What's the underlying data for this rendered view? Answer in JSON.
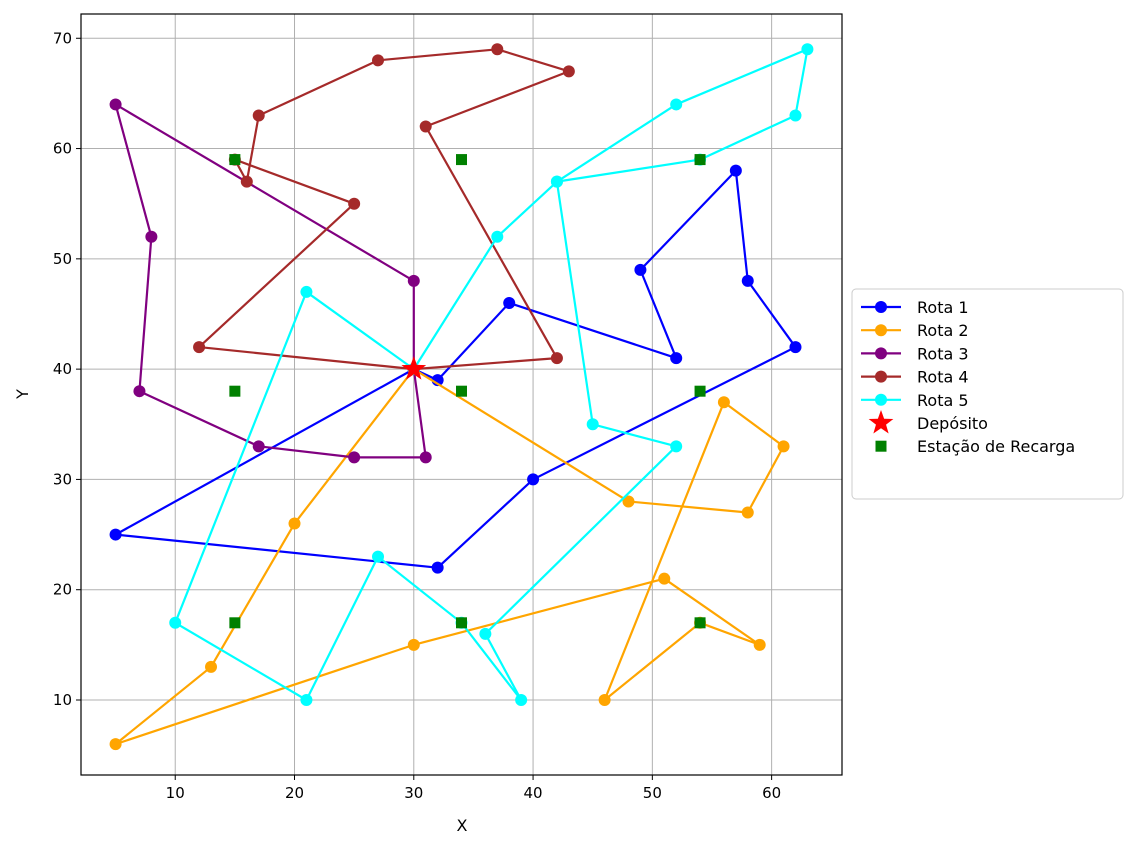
{
  "chart_data": {
    "type": "scatter",
    "title": "",
    "xlabel": "X",
    "ylabel": "Y",
    "xlim": [
      2.1,
      65.9
    ],
    "ylim": [
      3.2,
      72.2
    ],
    "xticks": [
      10,
      20,
      30,
      40,
      50,
      60
    ],
    "yticks": [
      10,
      20,
      30,
      40,
      50,
      60,
      70
    ],
    "grid": true,
    "legend_position": "center-right-outside",
    "series": [
      {
        "name": "Rota 1",
        "color": "#0000ff",
        "marker": "circle",
        "points": [
          [
            30,
            40
          ],
          [
            5,
            25
          ],
          [
            32,
            22
          ],
          [
            40,
            30
          ],
          [
            62,
            42
          ],
          [
            58,
            48
          ],
          [
            57,
            58
          ],
          [
            49,
            49
          ],
          [
            52,
            41
          ],
          [
            38,
            46
          ],
          [
            32,
            39
          ],
          [
            30,
            40
          ]
        ]
      },
      {
        "name": "Rota 2",
        "color": "#ffa500",
        "marker": "circle",
        "points": [
          [
            30,
            40
          ],
          [
            20,
            26
          ],
          [
            13,
            13
          ],
          [
            5,
            6
          ],
          [
            30,
            15
          ],
          [
            51,
            21
          ],
          [
            59,
            15
          ],
          [
            54,
            17
          ],
          [
            46,
            10
          ],
          [
            56,
            37
          ],
          [
            61,
            33
          ],
          [
            58,
            27
          ],
          [
            48,
            28
          ],
          [
            30,
            40
          ]
        ]
      },
      {
        "name": "Rota 3",
        "color": "#800080",
        "marker": "circle",
        "points": [
          [
            30,
            40
          ],
          [
            31,
            32
          ],
          [
            25,
            32
          ],
          [
            17,
            33
          ],
          [
            7,
            38
          ],
          [
            8,
            52
          ],
          [
            5,
            64
          ],
          [
            30,
            48
          ],
          [
            30,
            40
          ]
        ]
      },
      {
        "name": "Rota 4",
        "color": "#a52a2a",
        "marker": "circle",
        "points": [
          [
            30,
            40
          ],
          [
            12,
            42
          ],
          [
            25,
            55
          ],
          [
            15,
            59
          ],
          [
            16,
            57
          ],
          [
            17,
            63
          ],
          [
            27,
            68
          ],
          [
            37,
            69
          ],
          [
            43,
            67
          ],
          [
            31,
            62
          ],
          [
            42,
            41
          ],
          [
            30,
            40
          ]
        ]
      },
      {
        "name": "Rota 5",
        "color": "#00ffff",
        "marker": "circle",
        "points": [
          [
            30,
            40
          ],
          [
            21,
            47
          ],
          [
            10,
            17
          ],
          [
            21,
            10
          ],
          [
            27,
            23
          ],
          [
            34,
            17
          ],
          [
            39,
            10
          ],
          [
            36,
            16
          ],
          [
            52,
            33
          ],
          [
            45,
            35
          ],
          [
            42,
            57
          ],
          [
            54,
            59
          ],
          [
            62,
            63
          ],
          [
            63,
            69
          ],
          [
            52,
            64
          ],
          [
            42,
            57
          ],
          [
            37,
            52
          ],
          [
            30,
            40
          ]
        ]
      }
    ],
    "depot": {
      "name": "Depósito",
      "color": "#ff0000",
      "marker": "star",
      "point": [
        30,
        40
      ]
    },
    "stations": {
      "name": "Estação de Recarga",
      "color": "#008000",
      "marker": "square",
      "points": [
        [
          15,
          59
        ],
        [
          34,
          59
        ],
        [
          54,
          59
        ],
        [
          15,
          38
        ],
        [
          34,
          38
        ],
        [
          54,
          38
        ],
        [
          15,
          17
        ],
        [
          34,
          17
        ],
        [
          54,
          17
        ]
      ]
    }
  }
}
